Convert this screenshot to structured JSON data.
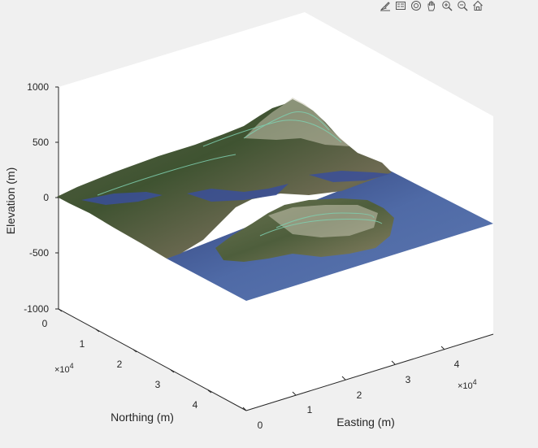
{
  "toolbar": {
    "buttons": [
      {
        "name": "brush-icon"
      },
      {
        "name": "legend-icon"
      },
      {
        "name": "rotate-3d-icon"
      },
      {
        "name": "pan-hand-icon"
      },
      {
        "name": "zoom-in-icon"
      },
      {
        "name": "zoom-out-icon"
      },
      {
        "name": "home-icon"
      }
    ]
  },
  "chart_data": {
    "type": "surface",
    "title": "",
    "xlabel": "Easting (m)",
    "ylabel": "Northing (m)",
    "zlabel": "Elevation (m)",
    "x_exponent_label": "×10",
    "x_exponent_power": "4",
    "y_exponent_label": "×10",
    "y_exponent_power": "4",
    "xticks": [
      "0",
      "1",
      "2",
      "3",
      "4"
    ],
    "yticks": [
      "0",
      "1",
      "2",
      "3",
      "4"
    ],
    "zticks": [
      "1000",
      "500",
      "0",
      "-500",
      "-1000"
    ],
    "xlim": [
      0,
      50000
    ],
    "ylim": [
      0,
      50000
    ],
    "zlim": [
      -1000,
      1000
    ],
    "texture": "satellite imagery draped over terrain with contour lines",
    "colors": {
      "water": "#4f6aa6",
      "land_dark": "#3e4f2e",
      "land_light": "#8a8c6a",
      "contour": "#7fd0b0"
    }
  }
}
